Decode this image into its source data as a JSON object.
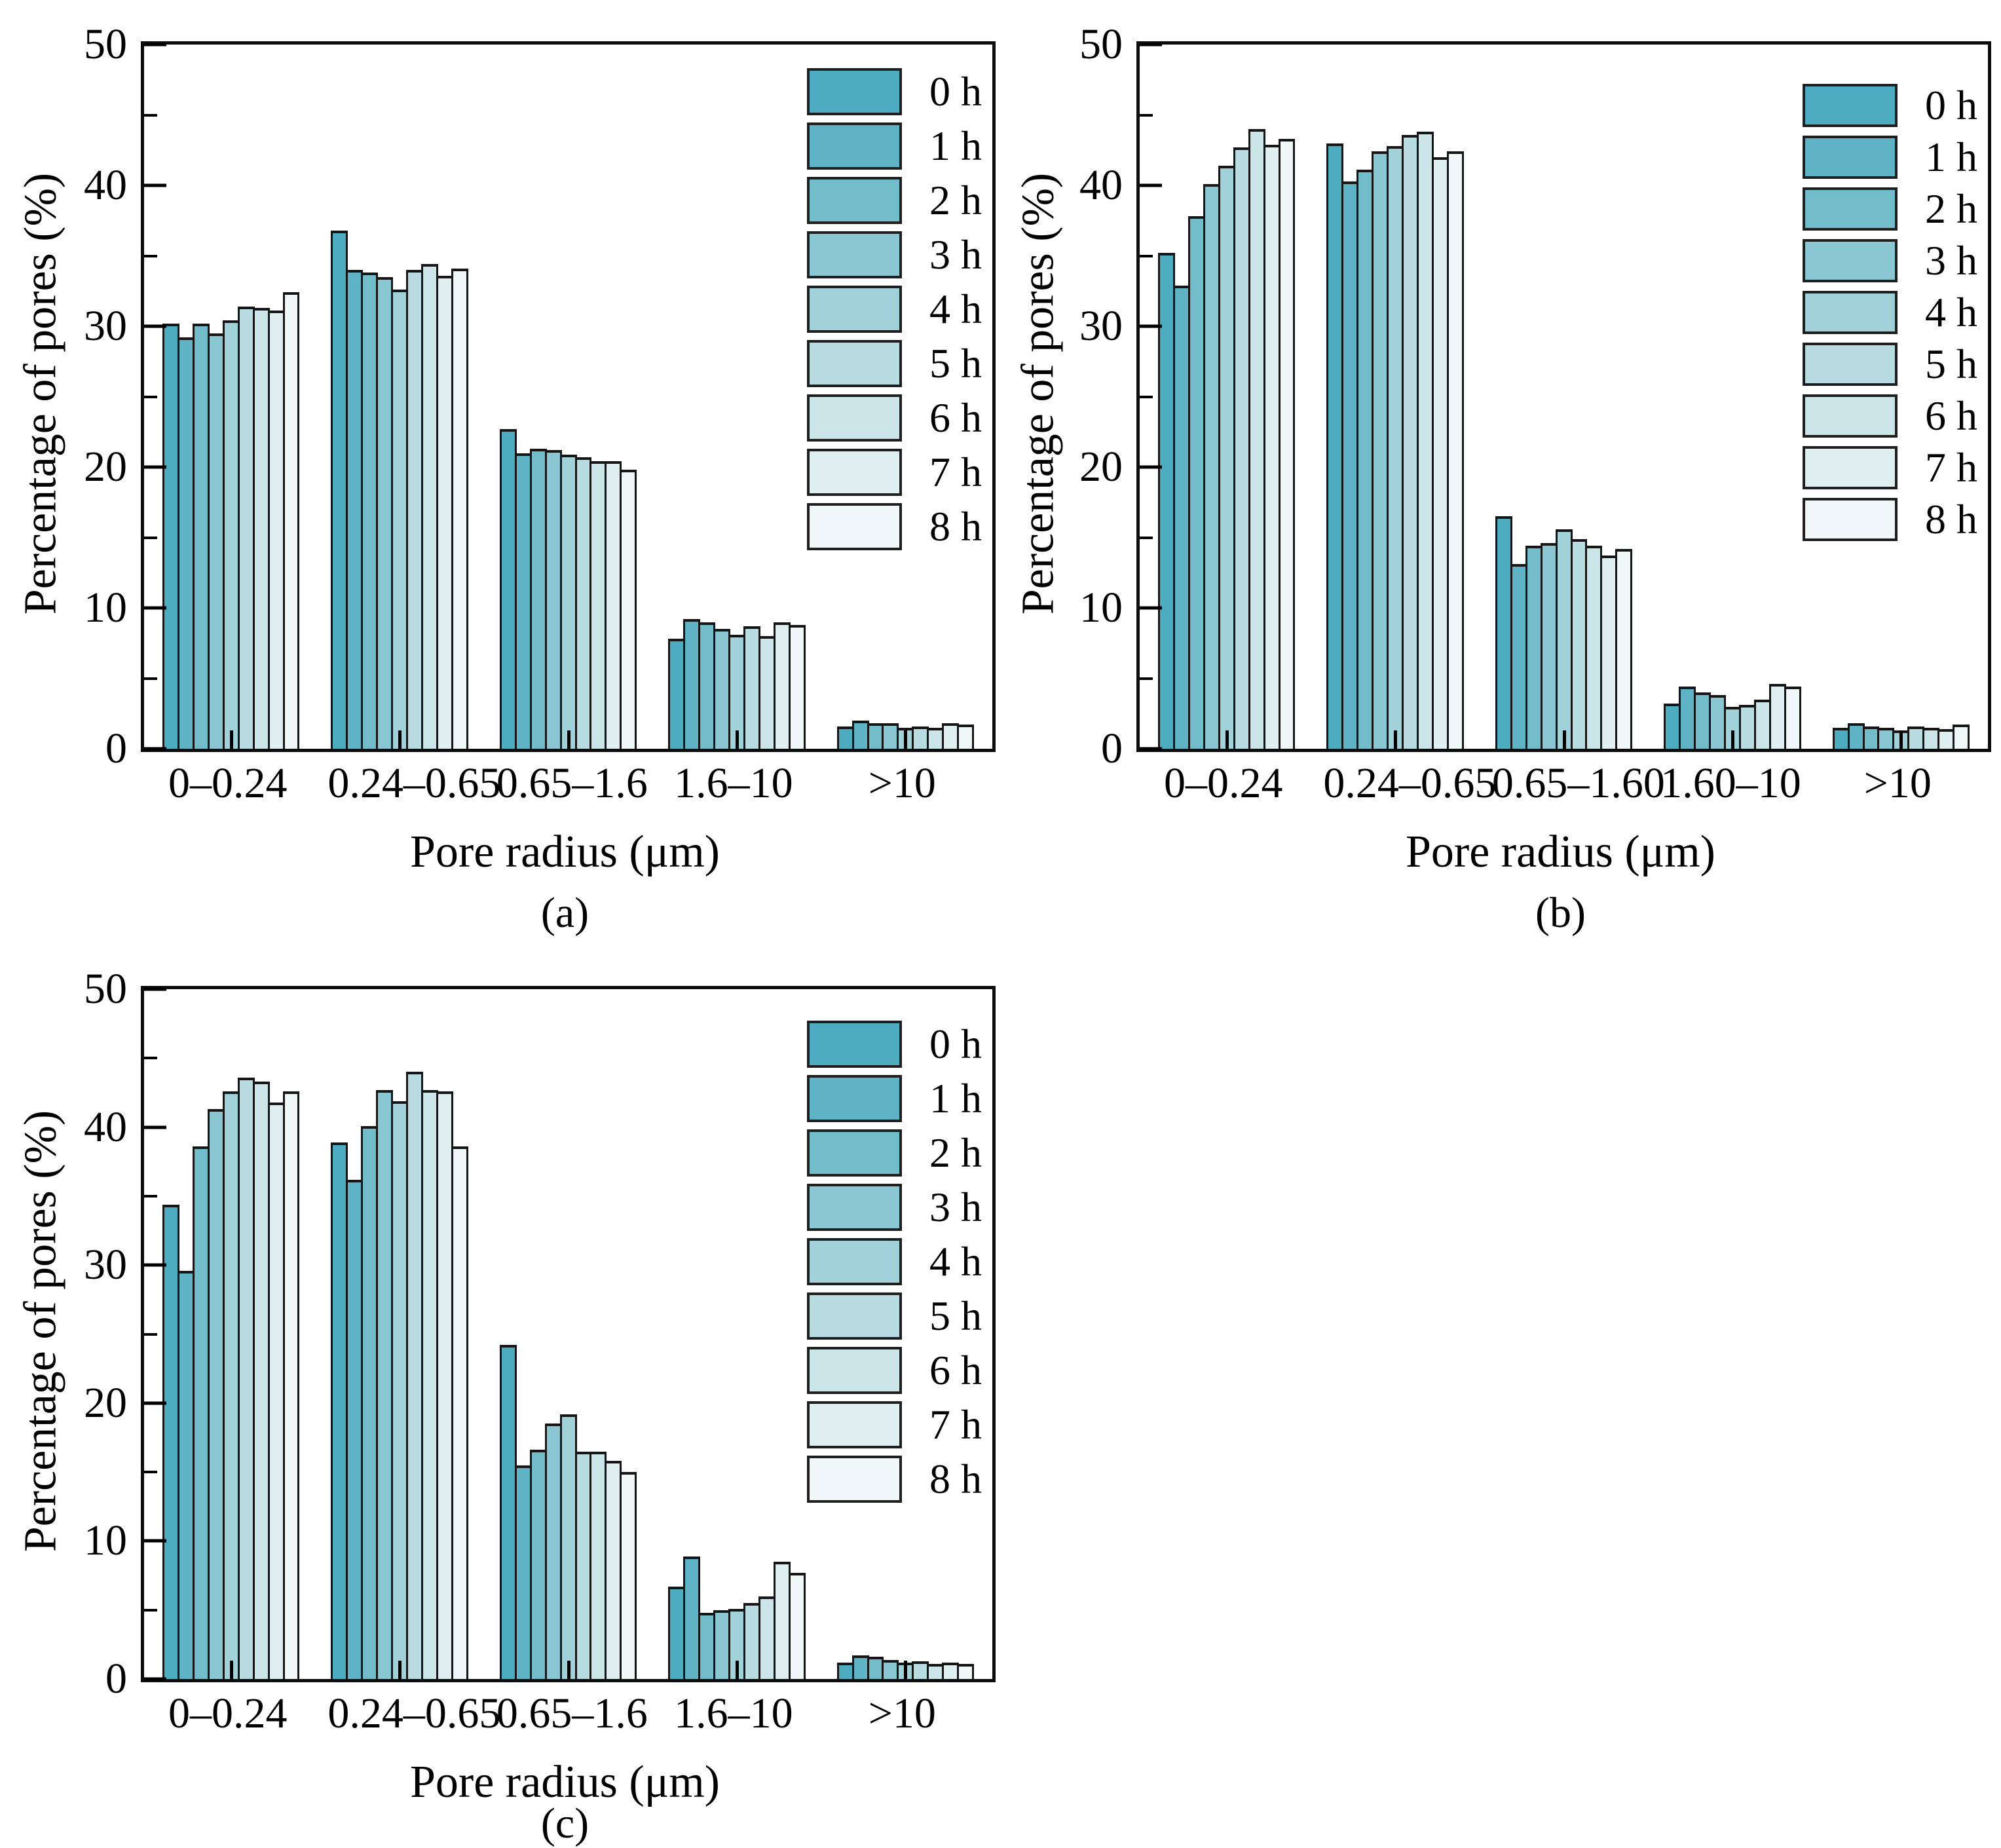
{
  "legend": {
    "labels": [
      "0 h",
      "1 h",
      "2 h",
      "3 h",
      "4 h",
      "5 h",
      "6 h",
      "7 h",
      "8 h"
    ]
  },
  "colors": [
    "#4dacbf",
    "#5fb3c4",
    "#73bdcb",
    "#8ac7d2",
    "#a1d1d9",
    "#b8dce2",
    "#cbe5e9",
    "#dfeff1",
    "#eff7f8"
  ],
  "axis": {
    "major_step": 10,
    "minor_step": 5
  },
  "chart_data": [
    {
      "id": "a",
      "type": "bar",
      "caption": "(a)",
      "xlabel": "Pore radius  (μm)",
      "ylabel": "Percentage of pores  (%)",
      "ylim": [
        0,
        50
      ],
      "yticks": [
        0,
        10,
        20,
        30,
        40,
        50
      ],
      "grid": false,
      "legend_position": "top-right-inside",
      "categories": [
        "0–0.24",
        "0.24–0.65",
        "0.65–1.6",
        "1.6–10",
        ">10"
      ],
      "series": [
        {
          "name": "0 h",
          "values": [
            30.2,
            36.8,
            22.7,
            7.8,
            1.6
          ]
        },
        {
          "name": "1 h",
          "values": [
            29.2,
            34.0,
            21.0,
            9.2,
            2.0
          ]
        },
        {
          "name": "2 h",
          "values": [
            30.2,
            33.8,
            21.3,
            9.0,
            1.8
          ]
        },
        {
          "name": "3 h",
          "values": [
            29.5,
            33.5,
            21.2,
            8.5,
            1.8
          ]
        },
        {
          "name": "4 h",
          "values": [
            30.4,
            32.6,
            20.9,
            8.1,
            1.5
          ]
        },
        {
          "name": "5 h",
          "values": [
            31.4,
            34.0,
            20.7,
            8.7,
            1.6
          ]
        },
        {
          "name": "6 h",
          "values": [
            31.3,
            34.4,
            20.4,
            8.0,
            1.5
          ]
        },
        {
          "name": "7 h",
          "values": [
            31.1,
            33.6,
            20.4,
            9.0,
            1.8
          ]
        },
        {
          "name": "8 h",
          "values": [
            32.4,
            34.1,
            19.8,
            8.8,
            1.7
          ]
        }
      ]
    },
    {
      "id": "b",
      "type": "bar",
      "caption": "(b)",
      "xlabel": "Pore radius (μm)",
      "ylabel": "Percentage of pores (%)",
      "ylim": [
        0,
        50
      ],
      "yticks": [
        0,
        10,
        20,
        30,
        40,
        50
      ],
      "grid": false,
      "legend_position": "top-right-inside",
      "categories": [
        "0–0.24",
        "0.24–0.65",
        "0.65–1.60",
        "1.60–10",
        ">10"
      ],
      "series": [
        {
          "name": "0 h",
          "values": [
            35.2,
            43.0,
            16.5,
            3.2,
            1.5
          ]
        },
        {
          "name": "1 h",
          "values": [
            32.9,
            40.3,
            13.1,
            4.4,
            1.8
          ]
        },
        {
          "name": "2 h",
          "values": [
            37.8,
            41.1,
            14.4,
            4.0,
            1.6
          ]
        },
        {
          "name": "3 h",
          "values": [
            40.1,
            42.4,
            14.6,
            3.8,
            1.5
          ]
        },
        {
          "name": "4 h",
          "values": [
            41.4,
            42.8,
            15.6,
            3.0,
            1.3
          ]
        },
        {
          "name": "5 h",
          "values": [
            42.7,
            43.6,
            14.9,
            3.1,
            1.6
          ]
        },
        {
          "name": "6 h",
          "values": [
            44.0,
            43.8,
            14.4,
            3.5,
            1.5
          ]
        },
        {
          "name": "7 h",
          "values": [
            42.9,
            42.0,
            13.7,
            4.6,
            1.4
          ]
        },
        {
          "name": "8 h",
          "values": [
            43.3,
            42.4,
            14.2,
            4.4,
            1.7
          ]
        }
      ]
    },
    {
      "id": "c",
      "type": "bar",
      "caption": "(c)",
      "xlabel": "Pore radius  (μm)",
      "ylabel": "Percentage of pores  (%)",
      "ylim": [
        0,
        50
      ],
      "yticks": [
        0,
        10,
        20,
        30,
        40,
        50
      ],
      "grid": false,
      "legend_position": "top-right-inside",
      "categories": [
        "0–0.24",
        "0.24–0.65",
        "0.65–1.6",
        "1.6–10",
        ">10"
      ],
      "series": [
        {
          "name": "0 h",
          "values": [
            34.4,
            38.9,
            24.2,
            6.7,
            1.2
          ]
        },
        {
          "name": "1 h",
          "values": [
            29.6,
            36.2,
            15.5,
            8.9,
            1.7
          ]
        },
        {
          "name": "2 h",
          "values": [
            38.6,
            40.1,
            16.6,
            4.8,
            1.6
          ]
        },
        {
          "name": "3 h",
          "values": [
            41.3,
            42.7,
            18.5,
            5.0,
            1.4
          ]
        },
        {
          "name": "4 h",
          "values": [
            42.6,
            41.9,
            19.2,
            5.1,
            1.2
          ]
        },
        {
          "name": "5 h",
          "values": [
            43.6,
            44.0,
            16.5,
            5.5,
            1.3
          ]
        },
        {
          "name": "6 h",
          "values": [
            43.3,
            42.7,
            16.5,
            6.0,
            1.1
          ]
        },
        {
          "name": "7 h",
          "values": [
            41.8,
            42.6,
            15.8,
            8.5,
            1.2
          ]
        },
        {
          "name": "8 h",
          "values": [
            42.6,
            38.6,
            15.0,
            7.7,
            1.1
          ]
        }
      ]
    }
  ]
}
